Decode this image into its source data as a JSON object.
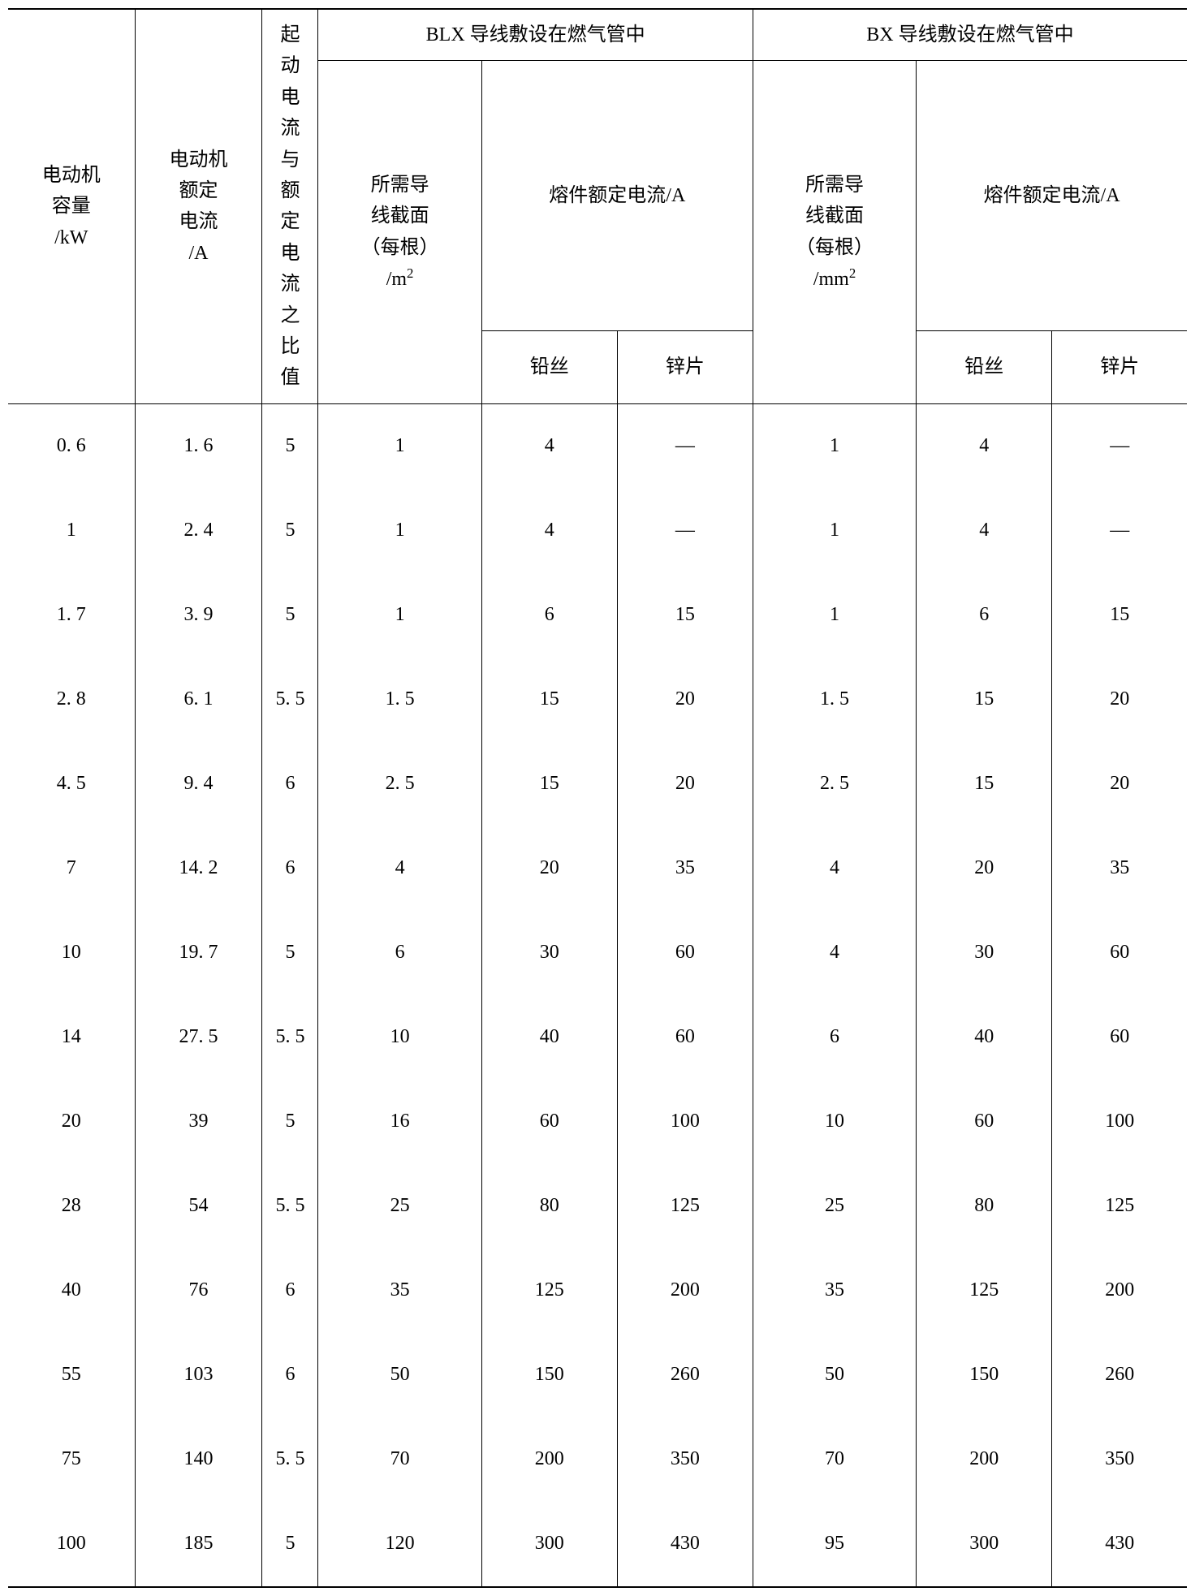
{
  "table": {
    "headers": {
      "col1": "电动机<br>容量<br>/kW",
      "col2": "电动机<br>额定<br>电流<br>/A",
      "col3": "起动<br>电流<br>与额<br>定电<br>流之<br>比值",
      "blx_group": "BLX 导线敷设在燃气管中",
      "bx_group": "BX 导线敷设在燃气管中",
      "blx_section": "所需导<br>线截面<br>（每根）<br>/m<sup>2</sup>",
      "blx_fuse": "熔件额定电流/A",
      "bx_section": "所需导<br>线截面<br>（每根）<br>/mm<sup>2</sup>",
      "bx_fuse": "熔件额定电流/A",
      "lead": "铅丝",
      "zinc": "锌片"
    },
    "rows": [
      [
        "0. 6",
        "1. 6",
        "5",
        "1",
        "4",
        "—",
        "1",
        "4",
        "—"
      ],
      [
        "1",
        "2. 4",
        "5",
        "1",
        "4",
        "—",
        "1",
        "4",
        "—"
      ],
      [
        "1. 7",
        "3. 9",
        "5",
        "1",
        "6",
        "15",
        "1",
        "6",
        "15"
      ],
      [
        "2. 8",
        "6. 1",
        "5. 5",
        "1. 5",
        "15",
        "20",
        "1. 5",
        "15",
        "20"
      ],
      [
        "4. 5",
        "9. 4",
        "6",
        "2. 5",
        "15",
        "20",
        "2. 5",
        "15",
        "20"
      ],
      [
        "7",
        "14. 2",
        "6",
        "4",
        "20",
        "35",
        "4",
        "20",
        "35"
      ],
      [
        "10",
        "19. 7",
        "5",
        "6",
        "30",
        "60",
        "4",
        "30",
        "60"
      ],
      [
        "14",
        "27. 5",
        "5. 5",
        "10",
        "40",
        "60",
        "6",
        "40",
        "60"
      ],
      [
        "20",
        "39",
        "5",
        "16",
        "60",
        "100",
        "10",
        "60",
        "100"
      ],
      [
        "28",
        "54",
        "5. 5",
        "25",
        "80",
        "125",
        "25",
        "80",
        "125"
      ],
      [
        "40",
        "76",
        "6",
        "35",
        "125",
        "200",
        "35",
        "125",
        "200"
      ],
      [
        "55",
        "103",
        "6",
        "50",
        "150",
        "260",
        "50",
        "150",
        "260"
      ],
      [
        "75",
        "140",
        "5. 5",
        "70",
        "200",
        "350",
        "70",
        "200",
        "350"
      ],
      [
        "100",
        "185",
        "5",
        "120",
        "300",
        "430",
        "95",
        "300",
        "430"
      ]
    ],
    "colors": {
      "text": "#000000",
      "background": "#ffffff",
      "border": "#000000"
    }
  }
}
